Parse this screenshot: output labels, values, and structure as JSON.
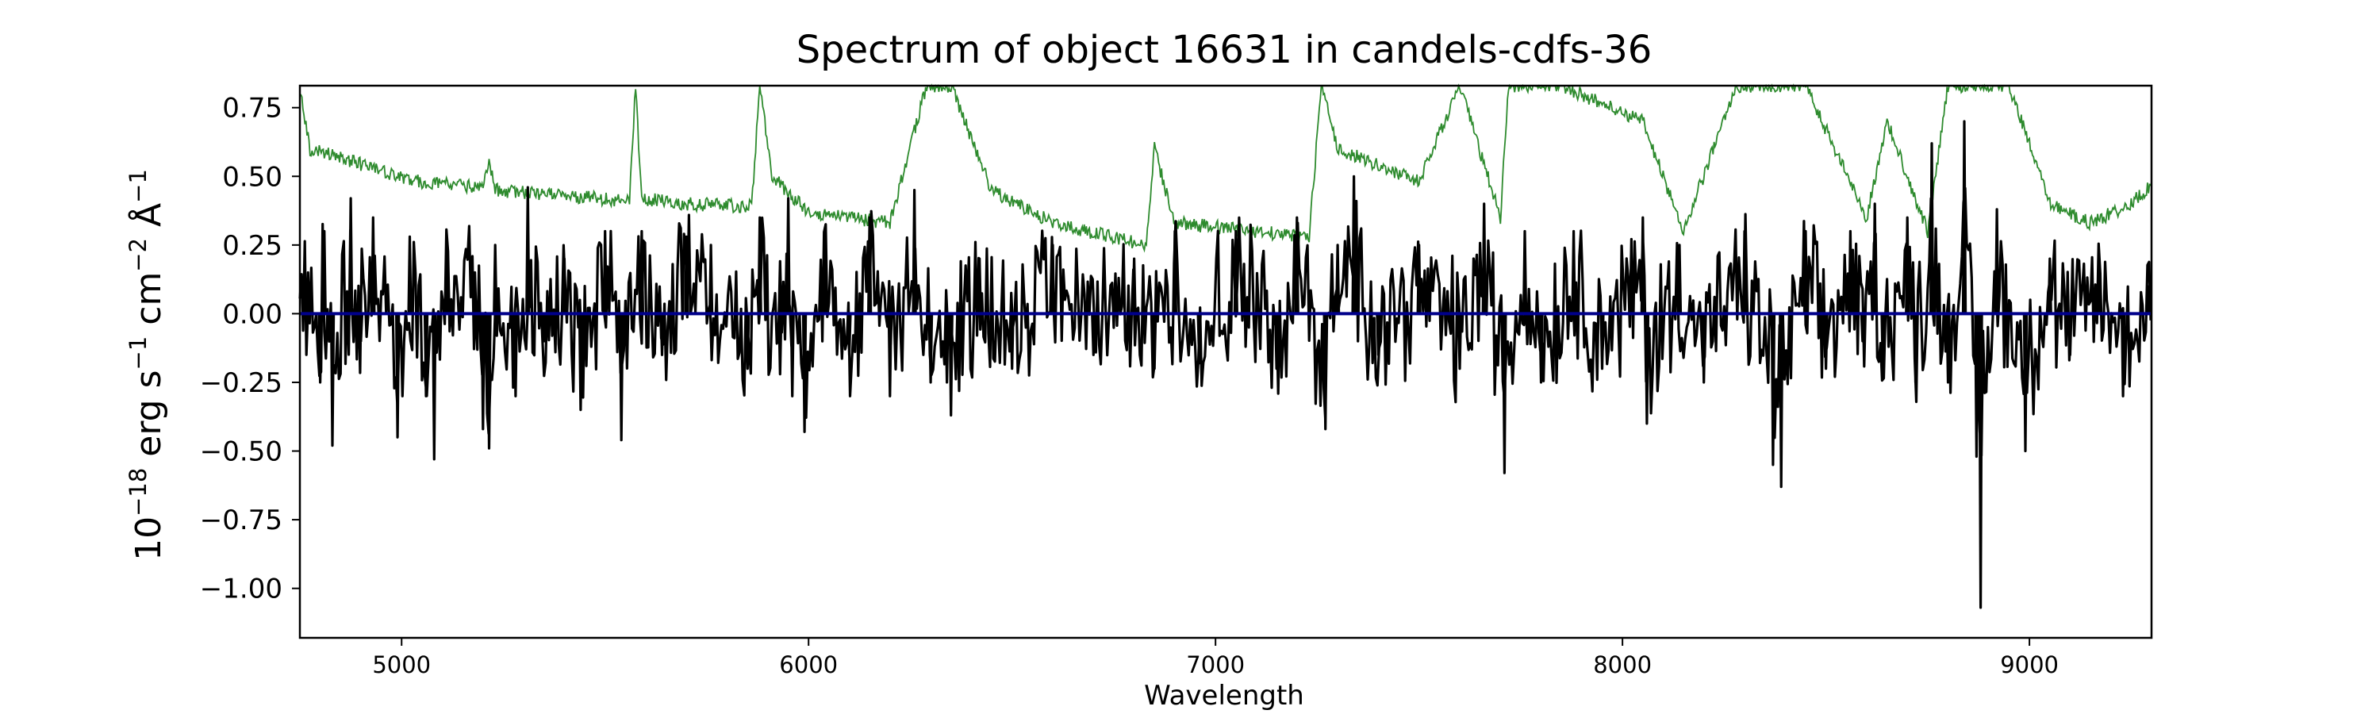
{
  "chart_data": {
    "type": "line",
    "title": "Spectrum of object 16631 in candels-cdfs-36",
    "xlabel": "Wavelength",
    "ylabel_base": "10",
    "ylabel_exp": "−18",
    "ylabel_unit1": " erg s",
    "ylabel_exp2": "−1",
    "ylabel_unit2": " cm",
    "ylabel_exp3": "−2",
    "ylabel_unit3": " Å",
    "ylabel_exp4": "−1",
    "xlim": [
      4750,
      9300
    ],
    "ylim": [
      -1.18,
      0.83
    ],
    "x_ticks": [
      5000,
      6000,
      7000,
      8000,
      9000
    ],
    "x_tick_labels": [
      "5000",
      "6000",
      "7000",
      "8000",
      "9000"
    ],
    "y_ticks": [
      -1.0,
      -0.75,
      -0.5,
      -0.25,
      0.0,
      0.25,
      0.5,
      0.75
    ],
    "y_tick_labels": [
      "−1.00",
      "−0.75",
      "−0.50",
      "−0.25",
      "0.00",
      "0.25",
      "0.50",
      "0.75"
    ],
    "grid": false,
    "colors": {
      "flux": "#000000",
      "error": "#2e8b2e",
      "zero": "#00008b"
    },
    "series": [
      {
        "role": "flux",
        "x_start": 4750,
        "x_end": 9300,
        "points": [
          [
            4770,
            0.15
          ],
          [
            4800,
            -0.25
          ],
          [
            4810,
            0.3
          ],
          [
            4830,
            -0.48
          ],
          [
            4875,
            0.42
          ],
          [
            4900,
            -0.1
          ],
          [
            4930,
            0.35
          ],
          [
            4990,
            -0.45
          ],
          [
            5020,
            0.28
          ],
          [
            5060,
            -0.3
          ],
          [
            5080,
            -0.53
          ],
          [
            5110,
            0.2
          ],
          [
            5180,
            0.15
          ],
          [
            5200,
            -0.42
          ],
          [
            5215,
            -0.49
          ],
          [
            5230,
            0.25
          ],
          [
            5280,
            -0.3
          ],
          [
            5310,
            0.46
          ],
          [
            5350,
            -0.1
          ],
          [
            5400,
            0.2
          ],
          [
            5440,
            -0.35
          ],
          [
            5500,
            0.3
          ],
          [
            5540,
            -0.46
          ],
          [
            5590,
            0.3
          ],
          [
            5640,
            -0.15
          ],
          [
            5700,
            0.28
          ],
          [
            5760,
            0.25
          ],
          [
            5850,
            -0.2
          ],
          [
            5880,
            0.35
          ],
          [
            5930,
            -0.22
          ],
          [
            5950,
            0.42
          ],
          [
            5960,
            -0.3
          ],
          [
            5990,
            -0.43
          ],
          [
            6040,
            0.25
          ],
          [
            6100,
            -0.15
          ],
          [
            6150,
            0.35
          ],
          [
            6200,
            -0.3
          ],
          [
            6260,
            0.45
          ],
          [
            6300,
            -0.25
          ],
          [
            6340,
            -0.25
          ],
          [
            6350,
            -0.37
          ],
          [
            6420,
            0.2
          ],
          [
            6500,
            -0.2
          ],
          [
            6600,
            0.25
          ],
          [
            6700,
            -0.15
          ],
          [
            6800,
            0.2
          ],
          [
            6850,
            -0.2
          ],
          [
            6900,
            0.3
          ],
          [
            6960,
            -0.18
          ],
          [
            7050,
            0.3
          ],
          [
            7150,
            -0.2
          ],
          [
            7200,
            0.35
          ],
          [
            7270,
            -0.42
          ],
          [
            7300,
            0.25
          ],
          [
            7340,
            0.5
          ],
          [
            7400,
            -0.15
          ],
          [
            7500,
            0.25
          ],
          [
            7600,
            -0.2
          ],
          [
            7660,
            0.4
          ],
          [
            7710,
            -0.58
          ],
          [
            7760,
            0.3
          ],
          [
            7800,
            -0.25
          ],
          [
            7880,
            0.3
          ],
          [
            7950,
            -0.2
          ],
          [
            8050,
            0.35
          ],
          [
            8060,
            -0.4
          ],
          [
            8140,
            0.25
          ],
          [
            8200,
            -0.25
          ],
          [
            8300,
            0.3
          ],
          [
            8370,
            -0.55
          ],
          [
            8390,
            -0.63
          ],
          [
            8450,
            0.3
          ],
          [
            8500,
            -0.2
          ],
          [
            8560,
            0.3
          ],
          [
            8590,
            -0.1
          ],
          [
            8620,
            0.4
          ],
          [
            8640,
            -0.2
          ],
          [
            8700,
            0.35
          ],
          [
            8720,
            -0.25
          ],
          [
            8760,
            0.62
          ],
          [
            8800,
            -0.25
          ],
          [
            8840,
            0.7
          ],
          [
            8870,
            -0.52
          ],
          [
            8880,
            -1.07
          ],
          [
            8920,
            0.38
          ],
          [
            8990,
            -0.5
          ],
          [
            9050,
            0.2
          ],
          [
            9100,
            -0.15
          ],
          [
            9170,
            0.25
          ],
          [
            9230,
            -0.3
          ],
          [
            9290,
            0.1
          ]
        ]
      },
      {
        "role": "error",
        "x_start": 4750,
        "x_end": 9300,
        "points": [
          [
            4750,
            0.82
          ],
          [
            4760,
            0.72
          ],
          [
            4775,
            0.6
          ],
          [
            4850,
            0.57
          ],
          [
            4950,
            0.52
          ],
          [
            5050,
            0.48
          ],
          [
            5200,
            0.46
          ],
          [
            5215,
            0.55
          ],
          [
            5230,
            0.45
          ],
          [
            5400,
            0.43
          ],
          [
            5560,
            0.41
          ],
          [
            5575,
            0.83
          ],
          [
            5590,
            0.42
          ],
          [
            5700,
            0.4
          ],
          [
            5860,
            0.39
          ],
          [
            5880,
            0.83
          ],
          [
            5910,
            0.5
          ],
          [
            6000,
            0.37
          ],
          [
            6200,
            0.33
          ],
          [
            6290,
            0.83
          ],
          [
            6350,
            0.83
          ],
          [
            6450,
            0.45
          ],
          [
            6600,
            0.33
          ],
          [
            6830,
            0.25
          ],
          [
            6850,
            0.6
          ],
          [
            6900,
            0.33
          ],
          [
            7100,
            0.3
          ],
          [
            7230,
            0.28
          ],
          [
            7260,
            0.83
          ],
          [
            7300,
            0.6
          ],
          [
            7500,
            0.48
          ],
          [
            7600,
            0.83
          ],
          [
            7700,
            0.35
          ],
          [
            7720,
            0.83
          ],
          [
            7850,
            0.83
          ],
          [
            8050,
            0.7
          ],
          [
            8150,
            0.3
          ],
          [
            8280,
            0.83
          ],
          [
            8450,
            0.83
          ],
          [
            8600,
            0.35
          ],
          [
            8650,
            0.7
          ],
          [
            8750,
            0.3
          ],
          [
            8800,
            0.83
          ],
          [
            8950,
            0.83
          ],
          [
            9050,
            0.4
          ],
          [
            9150,
            0.33
          ],
          [
            9250,
            0.4
          ],
          [
            9300,
            0.47
          ]
        ]
      },
      {
        "role": "zero",
        "x_start": 4750,
        "x_end": 9300,
        "points": [
          [
            4750,
            0.0
          ],
          [
            9300,
            0.0
          ]
        ]
      }
    ]
  }
}
